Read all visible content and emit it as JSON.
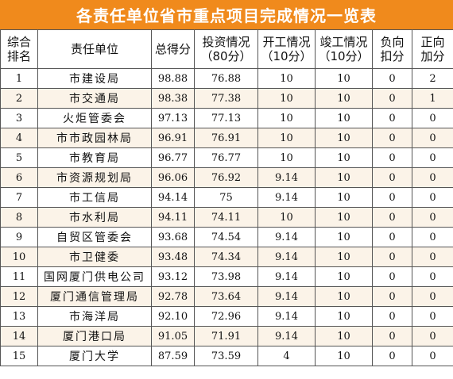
{
  "title": "各责任单位省市重点项目完成情况一览表",
  "headers": [
    [
      "综合",
      "排名"
    ],
    [
      "责任单位"
    ],
    [
      "总得分"
    ],
    [
      "投资情况",
      "（80分）"
    ],
    [
      "开工情况",
      "（10分）"
    ],
    [
      "竣工情况",
      "（10分）"
    ],
    [
      "负向",
      "扣分"
    ],
    [
      "正向",
      "加分"
    ]
  ],
  "rows": [
    [
      "1",
      "市建设局",
      "98.88",
      "76.88",
      "10",
      "10",
      "0",
      "2"
    ],
    [
      "2",
      "市交通局",
      "98.38",
      "77.38",
      "10",
      "10",
      "0",
      "1"
    ],
    [
      "3",
      "火炬管委会",
      "97.13",
      "77.13",
      "10",
      "10",
      "0",
      "0"
    ],
    [
      "4",
      "市市政园林局",
      "96.91",
      "76.91",
      "10",
      "10",
      "0",
      "0"
    ],
    [
      "5",
      "市教育局",
      "96.77",
      "76.77",
      "10",
      "10",
      "0",
      "0"
    ],
    [
      "6",
      "市资源规划局",
      "96.06",
      "76.92",
      "9.14",
      "10",
      "0",
      "0"
    ],
    [
      "7",
      "市工信局",
      "94.14",
      "75",
      "9.14",
      "10",
      "0",
      "0"
    ],
    [
      "8",
      "市水利局",
      "94.11",
      "74.11",
      "10",
      "10",
      "0",
      "0"
    ],
    [
      "9",
      "自贸区管委会",
      "93.68",
      "74.54",
      "9.14",
      "10",
      "0",
      "0"
    ],
    [
      "10",
      "市卫健委",
      "93.48",
      "74.34",
      "9.14",
      "10",
      "0",
      "0"
    ],
    [
      "11",
      "国网厦门供电公司",
      "93.12",
      "73.98",
      "9.14",
      "10",
      "0",
      "0"
    ],
    [
      "12",
      "厦门通信管理局",
      "92.78",
      "73.64",
      "9.14",
      "10",
      "0",
      "0"
    ],
    [
      "13",
      "市海洋局",
      "92.10",
      "72.96",
      "9.14",
      "10",
      "0",
      "0"
    ],
    [
      "14",
      "厦门港口局",
      "91.05",
      "71.91",
      "9.14",
      "10",
      "0",
      "0"
    ],
    [
      "15",
      "厦门大学",
      "87.59",
      "73.59",
      "4",
      "10",
      "0",
      "0"
    ]
  ]
}
